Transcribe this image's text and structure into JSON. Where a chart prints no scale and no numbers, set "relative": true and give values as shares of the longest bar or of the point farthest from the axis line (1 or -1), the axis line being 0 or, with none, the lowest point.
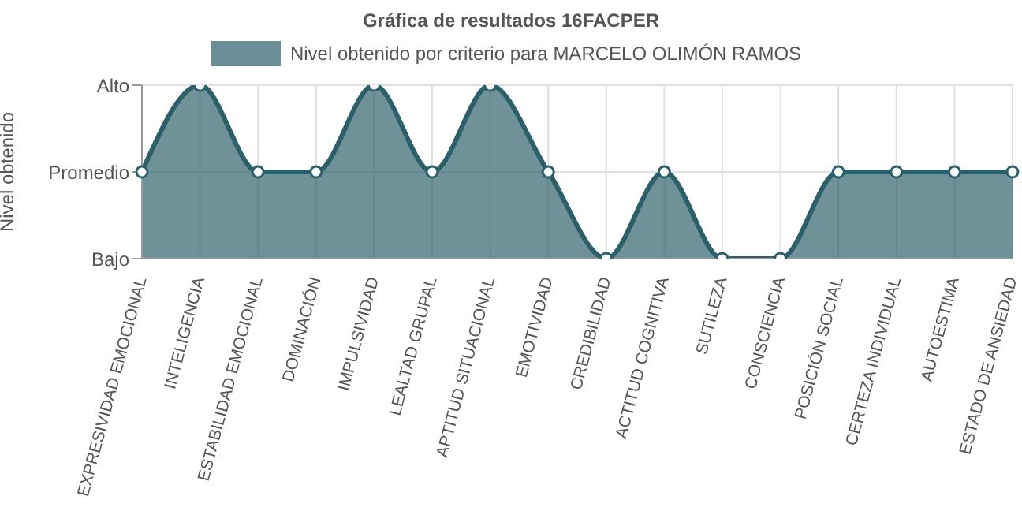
{
  "chart_data": {
    "type": "area",
    "title": "Gráfica de resultados 16FACPER",
    "ylabel": "Nivel obtenido",
    "categories": [
      "EXPRESIVIDAD EMOCIONAL",
      "INTELIGENCIA",
      "ESTABILIDAD EMOCIONAL",
      "DOMINACIÓN",
      "IMPULSIVIDAD",
      "LEALTAD GRUPAL",
      "APTITUD SITUACIONAL",
      "EMOTIVIDAD",
      "CREDIBILIDAD",
      "ACTITUD COGNITIVA",
      "SUTILEZA",
      "CONSCIENCIA",
      "POSICIÓN SOCIAL",
      "CERTEZA INDIVIDUAL",
      "AUTOESTIMA",
      "ESTADO DE ANSIEDAD"
    ],
    "series": [
      {
        "name": "Nivel obtenido por criterio para MARCELO OLIMÓN RAMOS",
        "color": "#2b5f69",
        "values": [
          0.5,
          1,
          0.5,
          0.5,
          1,
          0.5,
          1,
          0.5,
          0,
          0.5,
          0,
          0,
          0.5,
          0.5,
          0.5,
          0.5
        ]
      }
    ],
    "relative": true,
    "annotations": [
      "Bajo",
      "Promedio",
      "Alto"
    ],
    "grid": true,
    "legend": "top",
    "marker": "circle"
  }
}
